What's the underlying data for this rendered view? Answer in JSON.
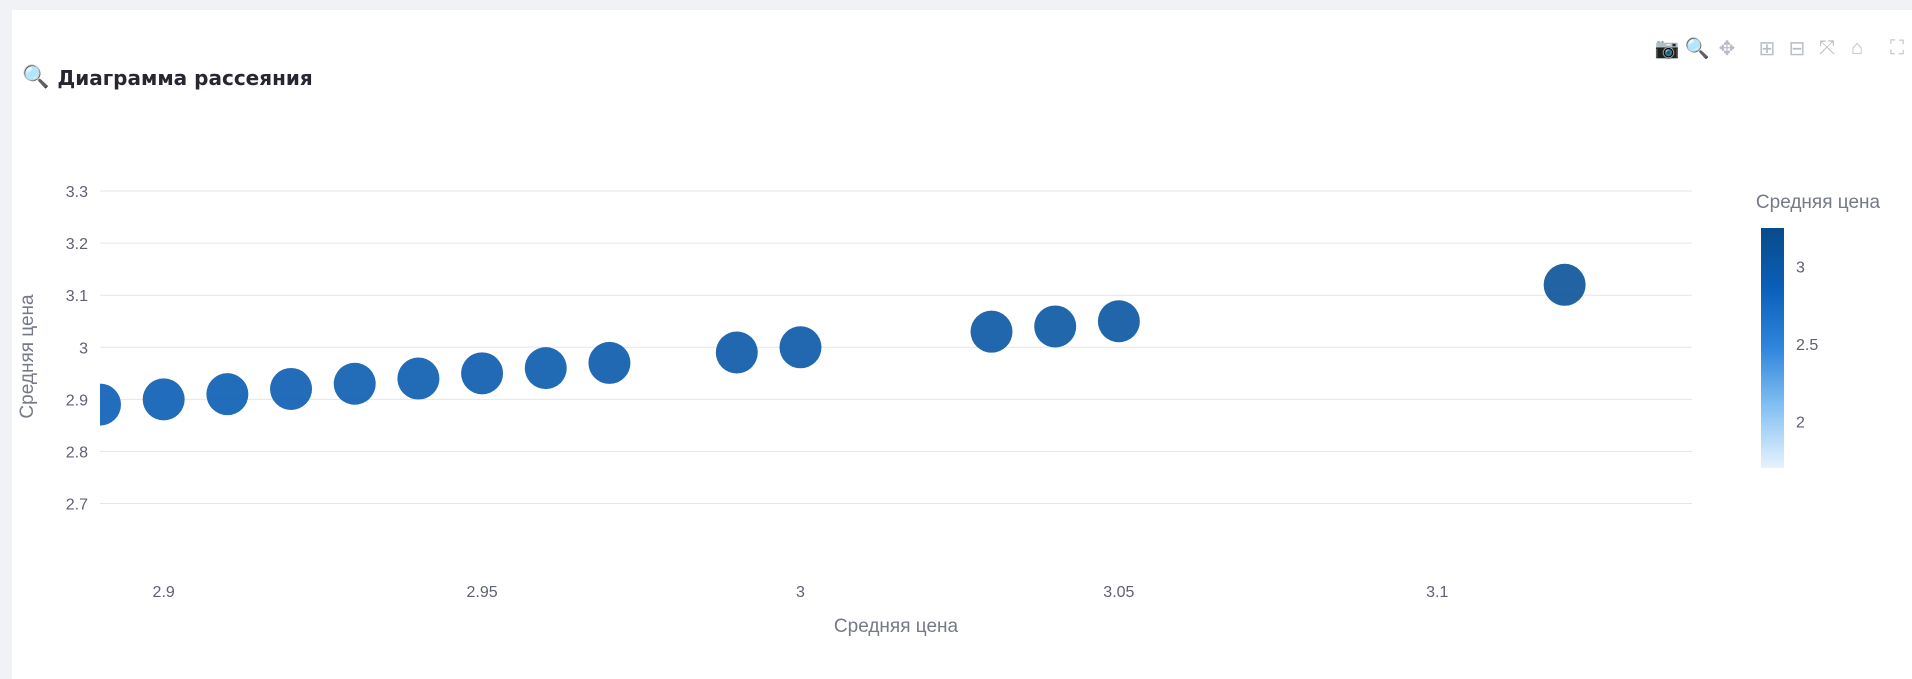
{
  "header": {
    "title": "Диаграмма рассеяния",
    "title_icon": "🔍"
  },
  "modebar": {
    "buttons": [
      {
        "name": "camera-icon",
        "glyph": "📷"
      },
      {
        "name": "zoom-icon",
        "glyph": "🔍",
        "active": true
      },
      {
        "name": "pan-icon",
        "glyph": "✥"
      },
      {
        "name": "zoom-in-icon",
        "glyph": "⊞"
      },
      {
        "name": "zoom-out-icon",
        "glyph": "⊟"
      },
      {
        "name": "autoscale-icon",
        "glyph": "⤧"
      },
      {
        "name": "reset-axes-icon",
        "glyph": "⌂"
      },
      {
        "name": "fullscreen-icon",
        "glyph": "⛶"
      }
    ]
  },
  "chart_data": {
    "type": "scatter",
    "title": "",
    "xlabel": "Средняя цена",
    "ylabel": "Средняя цена",
    "xlim": [
      2.89,
      3.14
    ],
    "ylim": [
      2.63,
      3.35
    ],
    "xticks": [
      2.9,
      2.95,
      3,
      3.05,
      3.1
    ],
    "xtick_labels": [
      "2.9",
      "2.95",
      "3",
      "3.05",
      "3.1"
    ],
    "yticks": [
      2.7,
      2.8,
      2.9,
      3,
      3.1,
      3.2,
      3.3
    ],
    "ytick_labels": [
      "2.7",
      "2.8",
      "2.9",
      "3",
      "3.1",
      "3.2",
      "3.3"
    ],
    "grid": true,
    "points": [
      {
        "x": 2.89,
        "y": 2.89
      },
      {
        "x": 2.9,
        "y": 2.9
      },
      {
        "x": 2.91,
        "y": 2.91
      },
      {
        "x": 2.92,
        "y": 2.92
      },
      {
        "x": 2.93,
        "y": 2.93
      },
      {
        "x": 2.94,
        "y": 2.94
      },
      {
        "x": 2.95,
        "y": 2.95
      },
      {
        "x": 2.96,
        "y": 2.96
      },
      {
        "x": 2.97,
        "y": 2.97
      },
      {
        "x": 2.99,
        "y": 2.99
      },
      {
        "x": 3.0,
        "y": 3.0
      },
      {
        "x": 3.03,
        "y": 3.03
      },
      {
        "x": 3.04,
        "y": 3.04
      },
      {
        "x": 3.05,
        "y": 3.05
      },
      {
        "x": 3.12,
        "y": 3.12
      }
    ],
    "colorbar": {
      "title": "Средняя цена",
      "range": [
        1.7,
        3.25
      ],
      "ticks": [
        2,
        2.5,
        3
      ],
      "tick_labels": [
        "2",
        "2.5",
        "3"
      ],
      "colors": [
        "#e6f3fd",
        "#86c1f3",
        "#2f86dc",
        "#0a5fb8",
        "#084b8a"
      ]
    }
  }
}
